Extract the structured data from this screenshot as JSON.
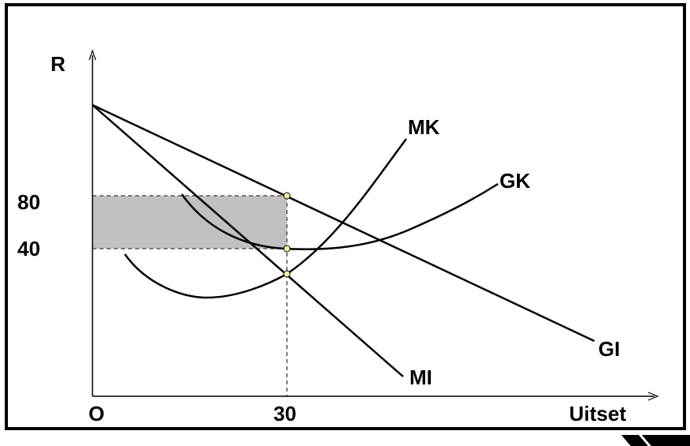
{
  "diagram": {
    "axes": {
      "y_label": "R",
      "x_label": "Uitset",
      "origin_label": "O",
      "y_ticks": [
        "80",
        "40"
      ],
      "x_ticks": [
        "30"
      ]
    },
    "curves": {
      "marginal_cost": "MK",
      "average_cost": "GK",
      "average_revenue": "GI",
      "marginal_revenue": "MI"
    }
  },
  "colors": {
    "line": "#000000",
    "shaded_area": "#c0c0c0",
    "point_fill": "#f4f0a0",
    "background": "#ffffff"
  }
}
